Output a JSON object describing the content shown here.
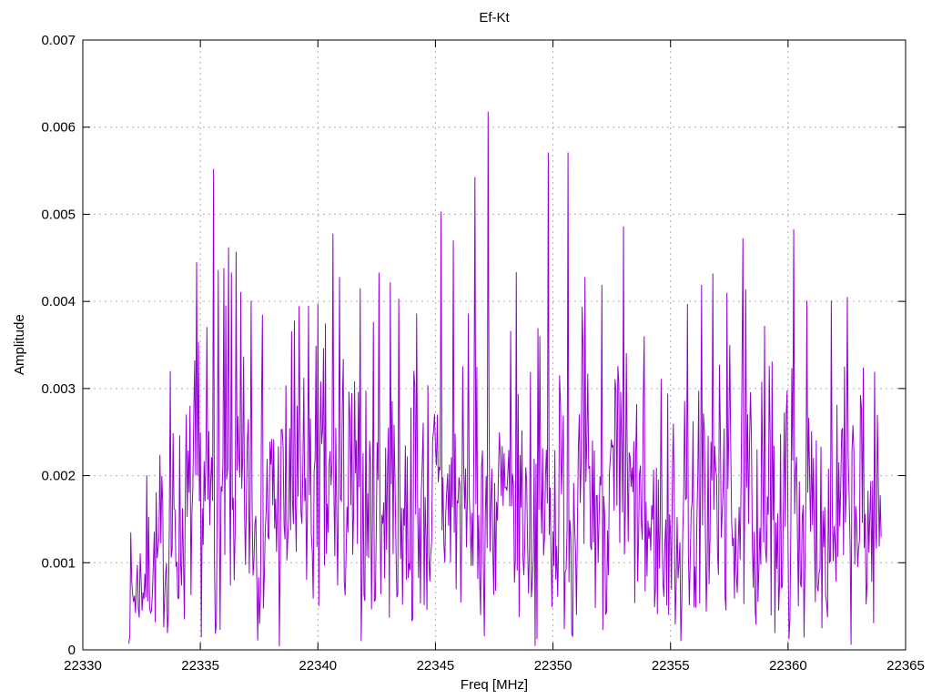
{
  "chart_data": {
    "type": "line",
    "title": "Ef-Kt",
    "xlabel": "Freq [MHz]",
    "ylabel": "Amplitude",
    "xlim": [
      22330,
      22365
    ],
    "ylim": [
      0,
      0.007
    ],
    "x_ticks": [
      22330,
      22335,
      22340,
      22345,
      22350,
      22355,
      22360,
      22365
    ],
    "x_tick_labels": [
      "22330",
      "22335",
      "22340",
      "22345",
      "22350",
      "22355",
      "22360",
      "22365"
    ],
    "y_ticks": [
      0,
      0.001,
      0.002,
      0.003,
      0.004,
      0.005,
      0.006,
      0.007
    ],
    "y_tick_labels": [
      "0",
      "0.001",
      "0.002",
      "0.003",
      "0.004",
      "0.005",
      "0.006",
      "0.007"
    ],
    "grid": true,
    "legend": "none",
    "line_color": "#9400d3",
    "grid_color": "#b0b0b0",
    "border_color": "#000000",
    "series": [
      {
        "name": "Ef-Kt",
        "style": "noisy-magnitude-spectrum",
        "freq_start": 22331.96,
        "freq_end": 22363.96,
        "freq_step": 0.04,
        "noise": {
          "distribution": "rayleigh",
          "sigma": 0.00135,
          "seed": 7,
          "min": 3e-05,
          "max": 0.0063
        },
        "envelope": [
          [
            22331.96,
            0.34
          ],
          [
            22332.5,
            0.5
          ],
          [
            22333.2,
            0.62
          ],
          [
            22334.1,
            0.82
          ],
          [
            22334.9,
            1.0
          ],
          [
            22353.2,
            1.0
          ],
          [
            22354.4,
            0.78
          ],
          [
            22355.7,
            0.88
          ],
          [
            22356.6,
            1.0
          ],
          [
            22361.5,
            0.95
          ],
          [
            22363.96,
            0.88
          ]
        ],
        "peaks": [
          [
            22333.7,
            0.0032
          ],
          [
            22334.85,
            0.00445
          ],
          [
            22335.55,
            0.00552
          ],
          [
            22335.75,
            0.00436
          ],
          [
            22336.2,
            0.00462
          ],
          [
            22336.5,
            0.00457
          ],
          [
            22337.15,
            0.00401
          ],
          [
            22338.35,
            4e-05
          ],
          [
            22339.0,
            0.00378
          ],
          [
            22339.6,
            0.00395
          ],
          [
            22340.0,
            0.00397
          ],
          [
            22340.65,
            0.00478
          ],
          [
            22340.9,
            0.00428
          ],
          [
            22341.8,
            0.00415
          ],
          [
            22342.6,
            0.00433
          ],
          [
            22343.1,
            0.00422
          ],
          [
            22344.2,
            0.00386
          ],
          [
            22345.25,
            0.00503
          ],
          [
            22345.75,
            0.0047
          ],
          [
            22346.4,
            0.00386
          ],
          [
            22347.25,
            0.00618
          ],
          [
            22348.2,
            0.00366
          ],
          [
            22349.8,
            0.00571
          ],
          [
            22350.65,
            0.00571
          ],
          [
            22351.35,
            0.00428
          ],
          [
            22352.1,
            0.00419
          ],
          [
            22353.0,
            0.00486
          ],
          [
            22354.6,
            0.00311
          ],
          [
            22355.45,
            0.0001
          ],
          [
            22355.7,
            0.00397
          ],
          [
            22356.3,
            0.00419
          ],
          [
            22356.8,
            0.00432
          ],
          [
            22357.4,
            0.0041
          ],
          [
            22358.2,
            0.00414
          ],
          [
            22359.3,
            0.00331
          ],
          [
            22360.25,
            0.00483
          ],
          [
            22360.8,
            0.00401
          ],
          [
            22361.85,
            0.00401
          ],
          [
            22362.4,
            0.00325
          ],
          [
            22363.2,
            0.00324
          ],
          [
            22363.8,
            0.0027
          ]
        ]
      }
    ]
  }
}
